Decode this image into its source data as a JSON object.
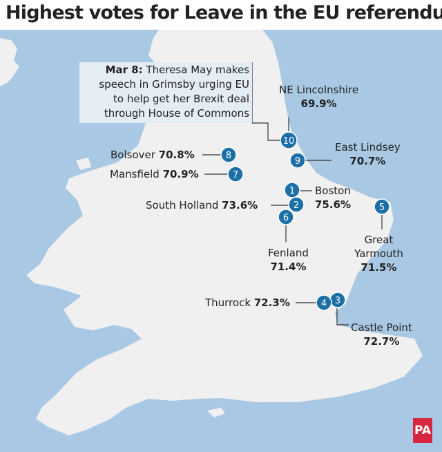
{
  "title": "Highest votes for Leave in the EU referendum",
  "callout": {
    "date": "Mar 8:",
    "line1": "Theresa May makes",
    "line2": "speech in Grimsby urging EU",
    "line3": "to help get her Brexit deal",
    "line4": "through House of Commons"
  },
  "places": [
    {
      "rank": "1",
      "name": "Boston",
      "value": "75.6%"
    },
    {
      "rank": "2",
      "name": "South Holland",
      "value": "73.6%"
    },
    {
      "rank": "3",
      "name": "Castle Point",
      "value": "72.7%"
    },
    {
      "rank": "4",
      "name": "Thurrock",
      "value": "72.3%"
    },
    {
      "rank": "5",
      "name_line1": "Great",
      "name_line2": "Yarmouth",
      "value": "71.5%"
    },
    {
      "rank": "6",
      "name": "Fenland",
      "value": "71.4%"
    },
    {
      "rank": "7",
      "name": "Mansfield",
      "value": "70.9%"
    },
    {
      "rank": "8",
      "name": "Bolsover",
      "value": "70.8%"
    },
    {
      "rank": "9",
      "name": "East Lindsey",
      "value": "70.7%"
    },
    {
      "rank": "10",
      "name": "NE Lincolnshire",
      "value": "69.9%"
    }
  ],
  "logo": "PA",
  "colors": {
    "sea": "#a9c8e3",
    "land": "#f0f0f1",
    "marker": "#1d6fa8",
    "callout_bg": "#e4ecf4",
    "logo": "#d7263d"
  }
}
